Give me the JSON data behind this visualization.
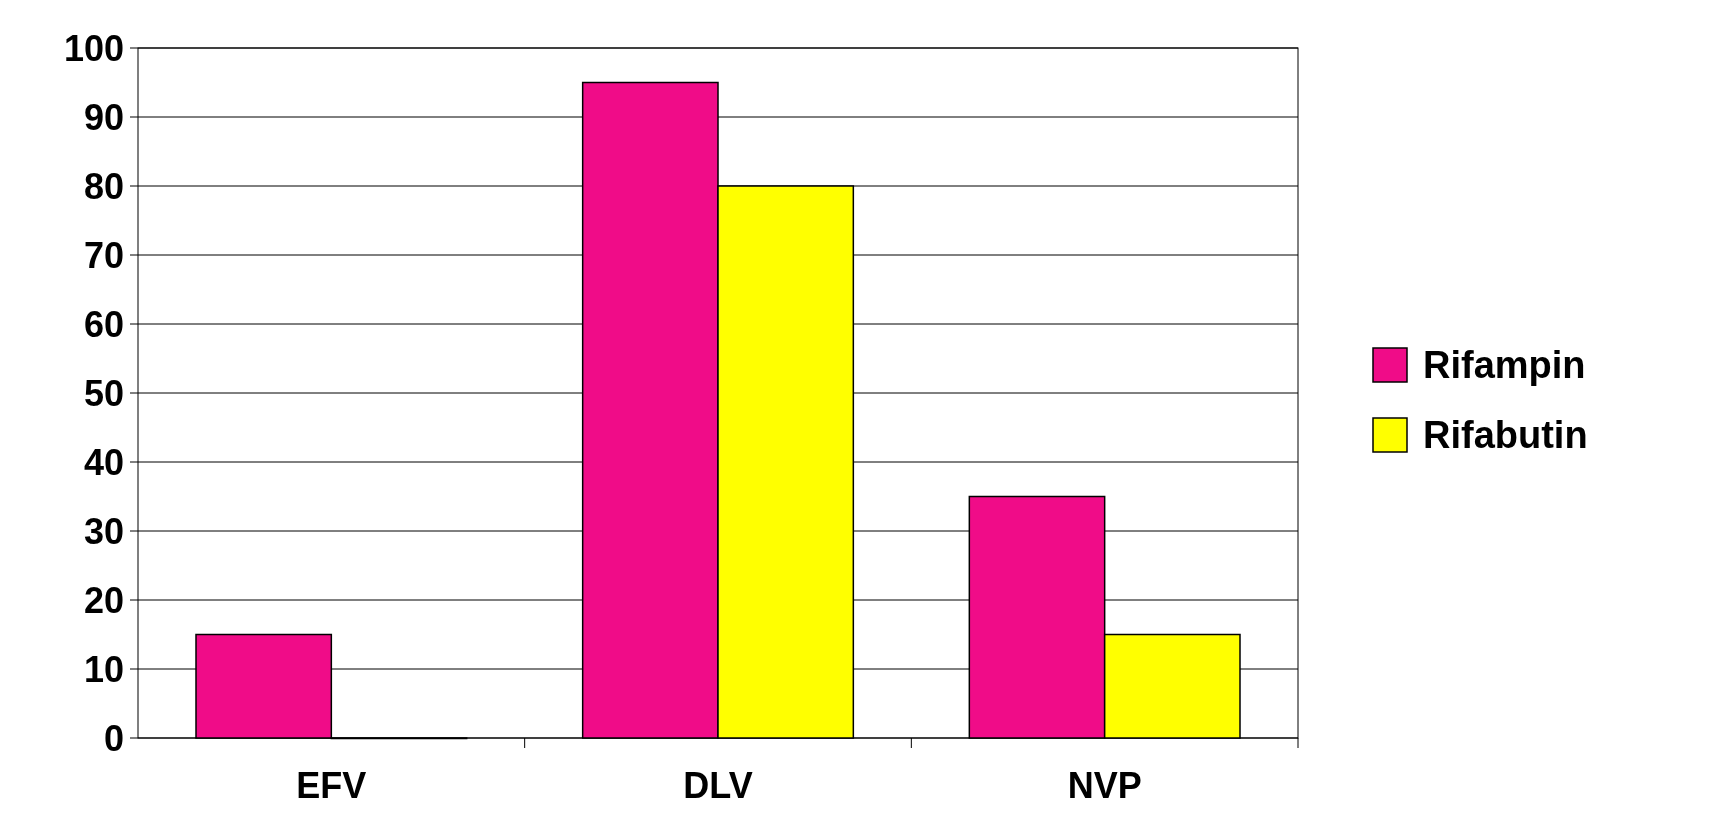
{
  "chart_data": {
    "type": "bar",
    "categories": [
      "EFV",
      "DLV",
      "NVP"
    ],
    "series": [
      {
        "name": "Rifampin",
        "color": "#f00c88",
        "values": [
          15,
          95,
          35
        ]
      },
      {
        "name": "Rifabutin",
        "color": "#ffff00",
        "values": [
          0,
          80,
          15
        ]
      }
    ],
    "ylim": [
      0,
      100
    ],
    "yticks": [
      0,
      10,
      20,
      30,
      40,
      50,
      60,
      70,
      80,
      90,
      100
    ],
    "grid": "y",
    "legend": "right"
  }
}
